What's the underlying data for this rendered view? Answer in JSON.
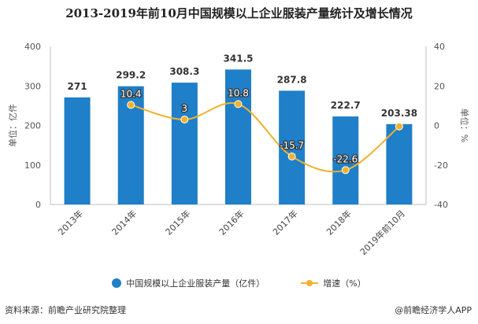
{
  "title": "2013-2019年前10月中国规模以上企业服装产量统计及增长情况",
  "chart_data": {
    "type": "bar",
    "categories": [
      "2013年",
      "2014年",
      "2015年",
      "2016年",
      "2017年",
      "2018年",
      "2019年前10月"
    ],
    "series": [
      {
        "name": "中国规模以上企业服装产量（亿件）",
        "type": "bar",
        "axis": "left",
        "values": [
          271,
          299.2,
          308.3,
          341.5,
          287.8,
          222.7,
          203.38
        ],
        "labels": [
          "271",
          "299.2",
          "308.3",
          "341.5",
          "287.8",
          "222.7",
          "203.38"
        ],
        "color": "#1f7fc8"
      },
      {
        "name": "增速（%）",
        "type": "line",
        "axis": "right",
        "values": [
          null,
          10.4,
          3,
          10.8,
          -15.7,
          -22.6,
          -0.5
        ],
        "labels": [
          "",
          "10.4",
          "3",
          "10.8",
          "-15.7",
          "-22.6",
          ""
        ],
        "color": "#f0b12e"
      }
    ],
    "y_left": {
      "label": "单位：亿件",
      "min": 0,
      "max": 400,
      "ticks": [
        0,
        100,
        200,
        300,
        400
      ]
    },
    "y_right": {
      "label": "单位：%",
      "min": -40,
      "max": 40,
      "ticks": [
        -40,
        -20,
        0,
        20,
        40
      ]
    },
    "grid": false,
    "legend_position": "bottom"
  },
  "footer": {
    "source": "资料来源：前瞻产业研究院整理",
    "brand": "@前瞻经济学人APP"
  }
}
